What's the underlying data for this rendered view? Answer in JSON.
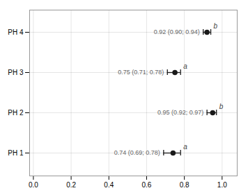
{
  "chart_data": {
    "type": "errorbar",
    "orientation": "horizontal",
    "categories": [
      "PH 1",
      "PH 2",
      "PH 3",
      "PH 4"
    ],
    "values": [
      0.74,
      0.95,
      0.75,
      0.92
    ],
    "ci_low": [
      0.69,
      0.92,
      0.71,
      0.9
    ],
    "ci_high": [
      0.78,
      0.97,
      0.78,
      0.94
    ],
    "value_labels": [
      "0.74 (0.69; 0.78)",
      "0.95 (0.92; 0.97)",
      "0.75 (0.71; 0.78)",
      "0.92 (0.90; 0.94)"
    ],
    "sig_letters": [
      "a",
      "b",
      "a",
      "b"
    ],
    "color": "#1a1a1a",
    "xlim": [
      -0.02,
      1.08
    ],
    "xticks": [
      {
        "value": 0,
        "label": "0.0"
      },
      0.2,
      0.4,
      0.6,
      0.8,
      {
        "value": 1,
        "label": "1.0"
      }
    ],
    "grid": true
  }
}
